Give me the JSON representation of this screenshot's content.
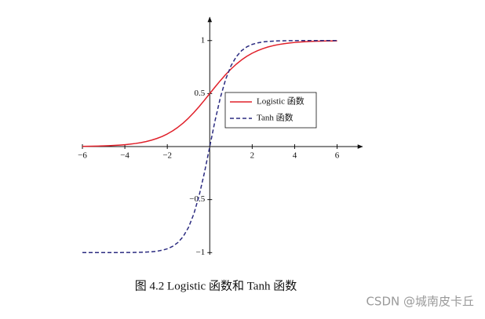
{
  "chart_data": {
    "type": "line",
    "caption": "图 4.2 Logistic 函数和 Tanh 函数",
    "watermark": "CSDN @城南皮卡丘",
    "x": [
      -6,
      -5.75,
      -5.5,
      -5.25,
      -5,
      -4.75,
      -4.5,
      -4.25,
      -4,
      -3.75,
      -3.5,
      -3.25,
      -3,
      -2.75,
      -2.5,
      -2.25,
      -2,
      -1.75,
      -1.5,
      -1.25,
      -1,
      -0.75,
      -0.5,
      -0.25,
      0,
      0.25,
      0.5,
      0.75,
      1,
      1.25,
      1.5,
      1.75,
      2,
      2.25,
      2.5,
      2.75,
      3,
      3.25,
      3.5,
      3.75,
      4,
      4.25,
      4.5,
      4.75,
      5,
      5.25,
      5.5,
      5.75,
      6
    ],
    "series": [
      {
        "name": "Logistic 函数",
        "color": "#e0202a",
        "linestyle": "solid",
        "values": [
          0.0025,
          0.0032,
          0.0041,
          0.0052,
          0.0067,
          0.0086,
          0.011,
          0.014,
          0.018,
          0.023,
          0.0293,
          0.0374,
          0.0474,
          0.0601,
          0.0759,
          0.0953,
          0.1192,
          0.148,
          0.1824,
          0.2227,
          0.2689,
          0.3208,
          0.3775,
          0.4378,
          0.5,
          0.5622,
          0.6225,
          0.6792,
          0.7311,
          0.7773,
          0.8176,
          0.852,
          0.8808,
          0.9047,
          0.9241,
          0.9399,
          0.9526,
          0.9626,
          0.9707,
          0.977,
          0.982,
          0.986,
          0.989,
          0.9914,
          0.9933,
          0.9948,
          0.9959,
          0.9968,
          0.9975
        ]
      },
      {
        "name": "Tanh 函数",
        "color": "#2b2b80",
        "linestyle": "dashed",
        "values": [
          -1,
          -1,
          -1,
          -1,
          -1,
          -1,
          -1,
          -1,
          -0.999,
          -0.999,
          -0.998,
          -0.997,
          -0.995,
          -0.992,
          -0.987,
          -0.978,
          -0.964,
          -0.941,
          -0.905,
          -0.848,
          -0.762,
          -0.635,
          -0.462,
          -0.245,
          0,
          0.245,
          0.462,
          0.635,
          0.762,
          0.848,
          0.905,
          0.941,
          0.964,
          0.978,
          0.987,
          0.992,
          0.995,
          0.997,
          0.998,
          0.999,
          0.999,
          1,
          1,
          1,
          1,
          1,
          1,
          1,
          1
        ]
      }
    ],
    "xlim": [
      -6,
      7.2
    ],
    "ylim": [
      -1.02,
      1.22
    ],
    "xticks": [
      {
        "value": -6,
        "label": "−6"
      },
      {
        "value": -4,
        "label": "−4"
      },
      {
        "value": -2,
        "label": "−2"
      },
      2,
      4,
      6
    ],
    "yticks": [
      {
        "value": -1,
        "label": "−1"
      },
      {
        "value": -0.5,
        "label": "−0.5"
      },
      0.5,
      1
    ]
  }
}
